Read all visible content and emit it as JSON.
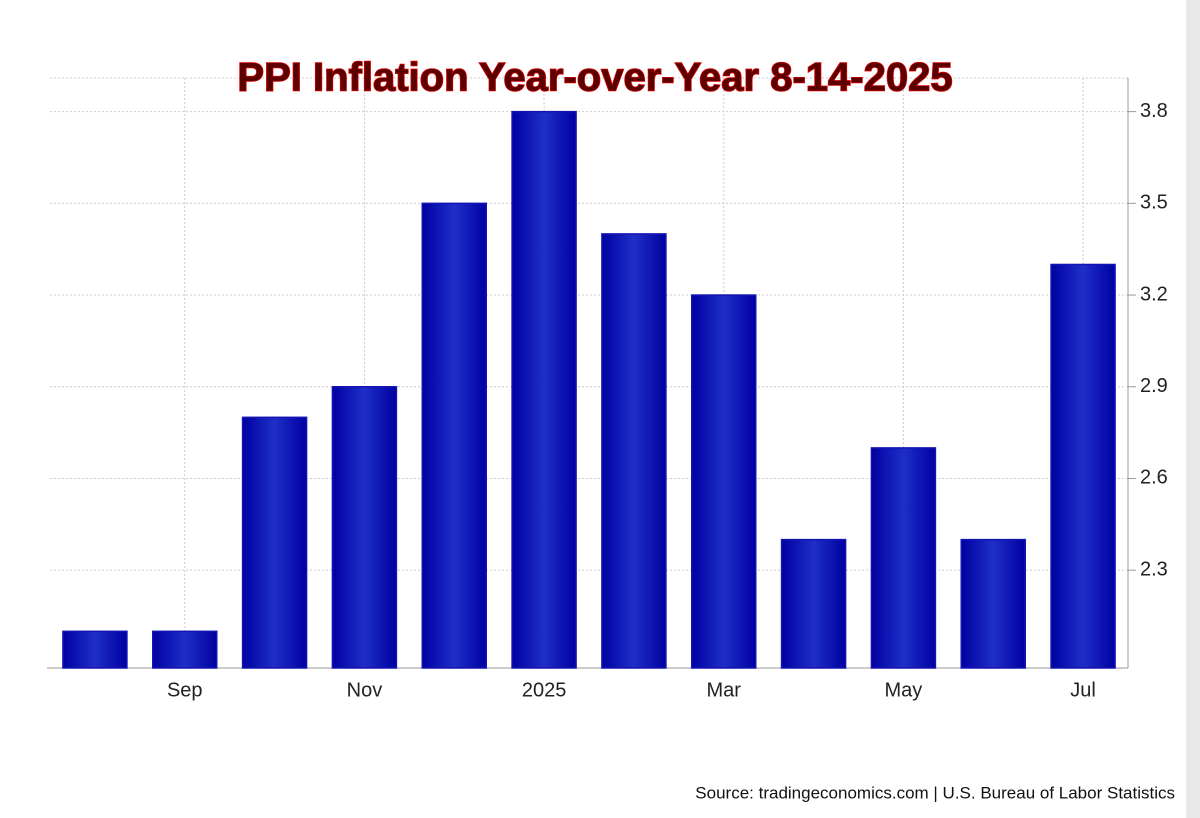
{
  "chart_data": {
    "type": "bar",
    "title": "PPI Inflation Year-over-Year 8-14-2025",
    "categories": [
      null,
      "Sep",
      null,
      "Nov",
      null,
      "2025",
      null,
      "Mar",
      null,
      "May",
      null,
      "Jul"
    ],
    "values": [
      2.1,
      2.1,
      2.8,
      2.9,
      3.5,
      3.8,
      3.4,
      3.2,
      2.4,
      2.7,
      2.4,
      3.3
    ],
    "color": "#1414b4",
    "ylim": [
      1.98,
      3.91
    ],
    "yticks": [
      2.3,
      2.6,
      2.9,
      3.2,
      3.5,
      3.8
    ],
    "grid": true,
    "source": "Source: tradingeconomics.com | U.S. Bureau of Labor Statistics"
  }
}
